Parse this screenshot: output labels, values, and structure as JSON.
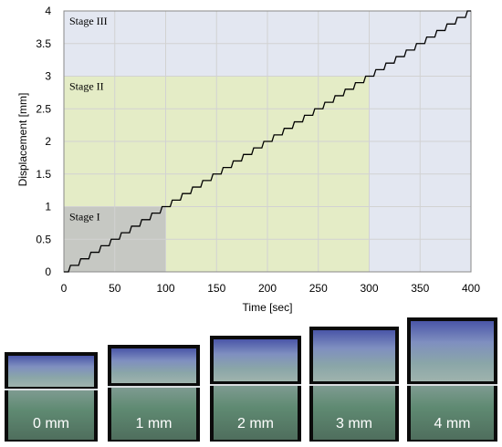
{
  "chart_data": {
    "type": "line",
    "xlabel": "Time [sec]",
    "ylabel": "Displacement [mm]",
    "xlim": [
      0,
      400
    ],
    "ylim": [
      0,
      4
    ],
    "x_ticks": [
      "0",
      "50",
      "100",
      "150",
      "200",
      "250",
      "300",
      "350",
      "400"
    ],
    "y_ticks": [
      "0",
      "0.5",
      "1",
      "1.5",
      "2",
      "2.5",
      "3",
      "3.5",
      "4"
    ],
    "grid": true,
    "series": [
      {
        "values_description_free": true,
        "x": [
          0,
          10,
          20,
          30,
          40,
          50,
          60,
          70,
          80,
          90,
          100,
          110,
          120,
          130,
          140,
          150,
          160,
          170,
          180,
          190,
          200,
          210,
          220,
          230,
          240,
          250,
          260,
          270,
          280,
          290,
          300,
          310,
          320,
          330,
          340,
          350,
          360,
          370,
          380,
          390,
          400
        ],
        "y": [
          0,
          0.1,
          0.2,
          0.3,
          0.4,
          0.5,
          0.6,
          0.7,
          0.8,
          0.9,
          1.0,
          1.1,
          1.2,
          1.3,
          1.4,
          1.5,
          1.6,
          1.7,
          1.8,
          1.9,
          2.0,
          2.1,
          2.2,
          2.3,
          2.4,
          2.5,
          2.6,
          2.7,
          2.8,
          2.9,
          3.0,
          3.1,
          3.2,
          3.3,
          3.4,
          3.5,
          3.6,
          3.7,
          3.8,
          3.9,
          4.0
        ],
        "color": "#000000"
      }
    ],
    "regions": [
      {
        "label": "Stage III",
        "x": [
          0,
          400
        ],
        "y": [
          0,
          4
        ],
        "color": "#e3e7f1"
      },
      {
        "label": "Stage II",
        "x": [
          0,
          300
        ],
        "y": [
          0,
          3
        ],
        "color": "#e4ecc6"
      },
      {
        "label": "Stage I",
        "x": [
          0,
          100
        ],
        "y": [
          0,
          1
        ],
        "color": "#c6c8c3"
      }
    ]
  },
  "photos": [
    {
      "label": "0 mm"
    },
    {
      "label": "1 mm"
    },
    {
      "label": "2 mm"
    },
    {
      "label": "3 mm"
    },
    {
      "label": "4 mm"
    }
  ]
}
